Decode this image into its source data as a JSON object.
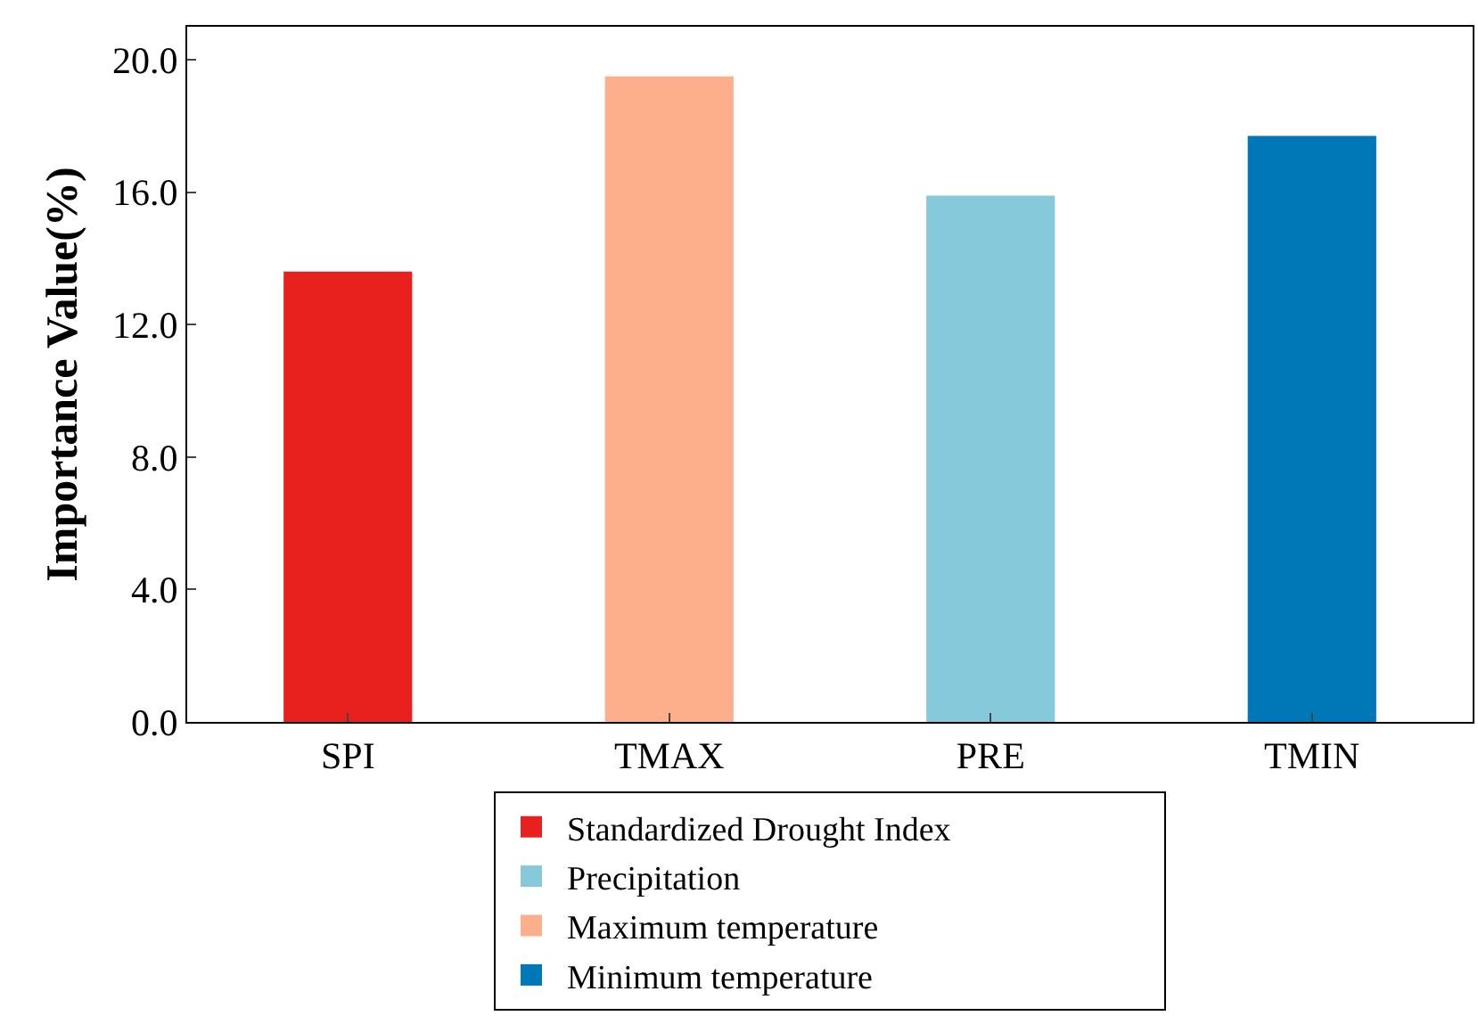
{
  "chart_data": {
    "type": "bar",
    "ylabel": "Importance Value(%)",
    "categories": [
      "SPI",
      "TMAX",
      "PRE",
      "TMIN"
    ],
    "series": [
      {
        "name": "Standardized Drought Index",
        "color": "#e8211f",
        "values": [
          13.6,
          null,
          null,
          null
        ]
      },
      {
        "name": "Maximum temperature",
        "color": "#fdae8b",
        "values": [
          null,
          19.5,
          null,
          null
        ]
      },
      {
        "name": "Precipitation",
        "color": "#86c9db",
        "values": [
          null,
          null,
          15.9,
          null
        ]
      },
      {
        "name": "Minimum temperature",
        "color": "#0077b6",
        "values": [
          null,
          null,
          null,
          17.7
        ]
      }
    ],
    "ylim": [
      0,
      21
    ],
    "yticks": [
      {
        "value": 0,
        "label": "0.0"
      },
      {
        "value": 4,
        "label": "4.0"
      },
      {
        "value": 8,
        "label": "8.0"
      },
      {
        "value": 12,
        "label": "12.0"
      },
      {
        "value": 16,
        "label": "16.0"
      },
      {
        "value": 20,
        "label": "20.0"
      }
    ],
    "grid": false,
    "legend": "bottom"
  }
}
